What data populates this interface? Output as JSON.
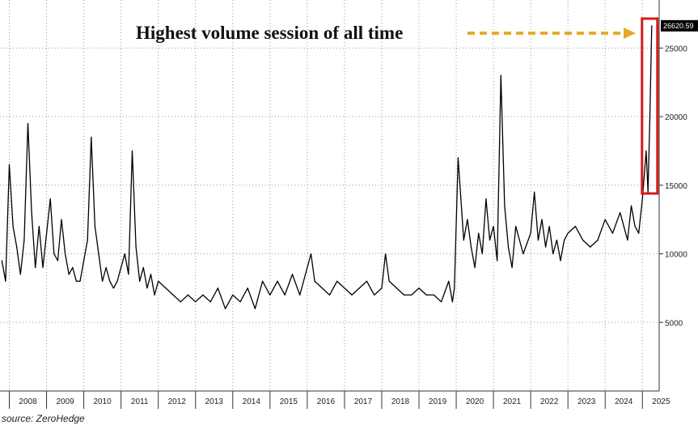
{
  "chart_data": {
    "type": "line",
    "title": "",
    "xlabel": "",
    "ylabel": "",
    "x_ticks": [
      "2008",
      "2009",
      "2010",
      "2011",
      "2012",
      "2013",
      "2014",
      "2015",
      "2016",
      "2017",
      "2018",
      "2019",
      "2020",
      "2021",
      "2022",
      "2023",
      "2024",
      "2025"
    ],
    "y_ticks": [
      5000,
      10000,
      15000,
      20000,
      25000
    ],
    "ylim": [
      0,
      28500
    ],
    "xlim": [
      2007.75,
      2025.45
    ],
    "grid": true,
    "y_axis_side": "right",
    "last_value_label": "26620.59",
    "annotation": "Highest volume session of all time",
    "source": "source: ZeroHedge",
    "colors": {
      "line": "#000000",
      "annotation_arrow": "#E8A92A",
      "highlight_box": "#D7191C",
      "last_value_box": "#000000"
    },
    "series": [
      {
        "name": "",
        "x": [
          2007.8,
          2007.9,
          2008.0,
          2008.1,
          2008.2,
          2008.3,
          2008.4,
          2008.5,
          2008.6,
          2008.7,
          2008.8,
          2008.9,
          2009.0,
          2009.1,
          2009.2,
          2009.3,
          2009.4,
          2009.5,
          2009.6,
          2009.7,
          2009.8,
          2009.9,
          2010.0,
          2010.1,
          2010.2,
          2010.3,
          2010.4,
          2010.5,
          2010.6,
          2010.7,
          2010.8,
          2010.9,
          2011.0,
          2011.1,
          2011.2,
          2011.3,
          2011.4,
          2011.5,
          2011.6,
          2011.7,
          2011.8,
          2011.9,
          2012.0,
          2012.2,
          2012.4,
          2012.6,
          2012.8,
          2013.0,
          2013.2,
          2013.4,
          2013.6,
          2013.8,
          2014.0,
          2014.2,
          2014.4,
          2014.6,
          2014.8,
          2015.0,
          2015.2,
          2015.4,
          2015.6,
          2015.8,
          2016.0,
          2016.1,
          2016.2,
          2016.4,
          2016.6,
          2016.8,
          2017.0,
          2017.2,
          2017.4,
          2017.6,
          2017.8,
          2018.0,
          2018.1,
          2018.2,
          2018.4,
          2018.6,
          2018.8,
          2019.0,
          2019.2,
          2019.4,
          2019.6,
          2019.8,
          2019.9,
          2019.95,
          2020.05,
          2020.1,
          2020.2,
          2020.3,
          2020.4,
          2020.5,
          2020.6,
          2020.7,
          2020.8,
          2020.9,
          2021.0,
          2021.1,
          2021.2,
          2021.3,
          2021.4,
          2021.5,
          2021.6,
          2021.8,
          2022.0,
          2022.1,
          2022.2,
          2022.3,
          2022.4,
          2022.5,
          2022.6,
          2022.7,
          2022.8,
          2022.9,
          2023.0,
          2023.2,
          2023.4,
          2023.6,
          2023.8,
          2024.0,
          2024.2,
          2024.4,
          2024.5,
          2024.6,
          2024.7,
          2024.8,
          2024.9,
          2025.0,
          2025.1,
          2025.15,
          2025.2,
          2025.25
        ],
        "values": [
          9500,
          8000,
          16500,
          12000,
          10500,
          8500,
          11000,
          19500,
          13000,
          9000,
          12000,
          9000,
          11500,
          14000,
          10000,
          9500,
          12500,
          10000,
          8500,
          9000,
          8000,
          8000,
          9500,
          11000,
          18500,
          12000,
          10000,
          8000,
          9000,
          8000,
          7500,
          8000,
          9000,
          10000,
          8500,
          17500,
          10500,
          8000,
          9000,
          7500,
          8500,
          7000,
          8000,
          7500,
          7000,
          6500,
          7000,
          6500,
          7000,
          6500,
          7500,
          6000,
          7000,
          6500,
          7500,
          6000,
          8000,
          7000,
          8000,
          7000,
          8500,
          7000,
          9000,
          10000,
          8000,
          7500,
          7000,
          8000,
          7500,
          7000,
          7500,
          8000,
          7000,
          7500,
          10000,
          8000,
          7500,
          7000,
          7000,
          7500,
          7000,
          7000,
          6500,
          8000,
          6500,
          7500,
          17000,
          15000,
          11000,
          12500,
          10500,
          9000,
          11500,
          10000,
          14000,
          11000,
          12000,
          9500,
          23000,
          13500,
          10500,
          9000,
          12000,
          10000,
          11500,
          14500,
          11000,
          12500,
          10500,
          12000,
          10000,
          11000,
          9500,
          11000,
          11500,
          12000,
          11000,
          10500,
          11000,
          12500,
          11500,
          13000,
          12000,
          11000,
          13500,
          12000,
          11500,
          14000,
          17500,
          14500,
          20000,
          26621
        ]
      }
    ]
  }
}
